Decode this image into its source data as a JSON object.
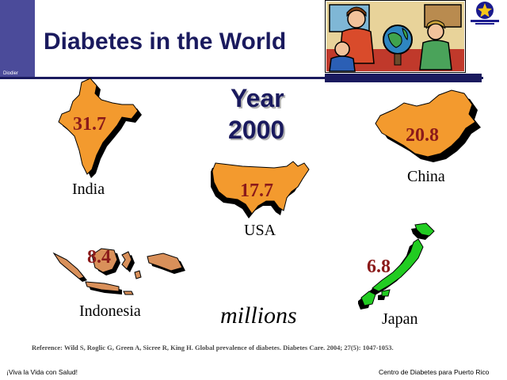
{
  "slide": {
    "side_label": "Diodier",
    "title": "Diabetes in the World",
    "year_label": "Year",
    "year_value": "2000",
    "units": "millions",
    "reference": "Reference: Wild S, Roglic G, Green A, Sicree R, King H. Global prevalence of diabetes. Diabetes Care. 2004; 27(5): 1047-1053.",
    "footer_left": "¡Viva la Vida con Salud!",
    "footer_right": "Centro de Diabetes para Puerto Rico"
  },
  "countries": [
    {
      "name": "India",
      "value": "31.7",
      "color": "#f39a2e"
    },
    {
      "name": "USA",
      "value": "17.7",
      "color": "#f39a2e"
    },
    {
      "name": "China",
      "value": "20.8",
      "color": "#f39a2e"
    },
    {
      "name": "Indonesia",
      "value": "8.4",
      "color": "#d9905a"
    },
    {
      "name": "Japan",
      "value": "6.8",
      "color": "#22cc22"
    }
  ],
  "colors": {
    "title": "#1a1a5e",
    "value_text": "#8b1a1a",
    "shadow": "#000000"
  },
  "icons": {
    "clipart": "teacher-students-globe-icon",
    "logo": "centro-de-diabetes-star-logo"
  }
}
